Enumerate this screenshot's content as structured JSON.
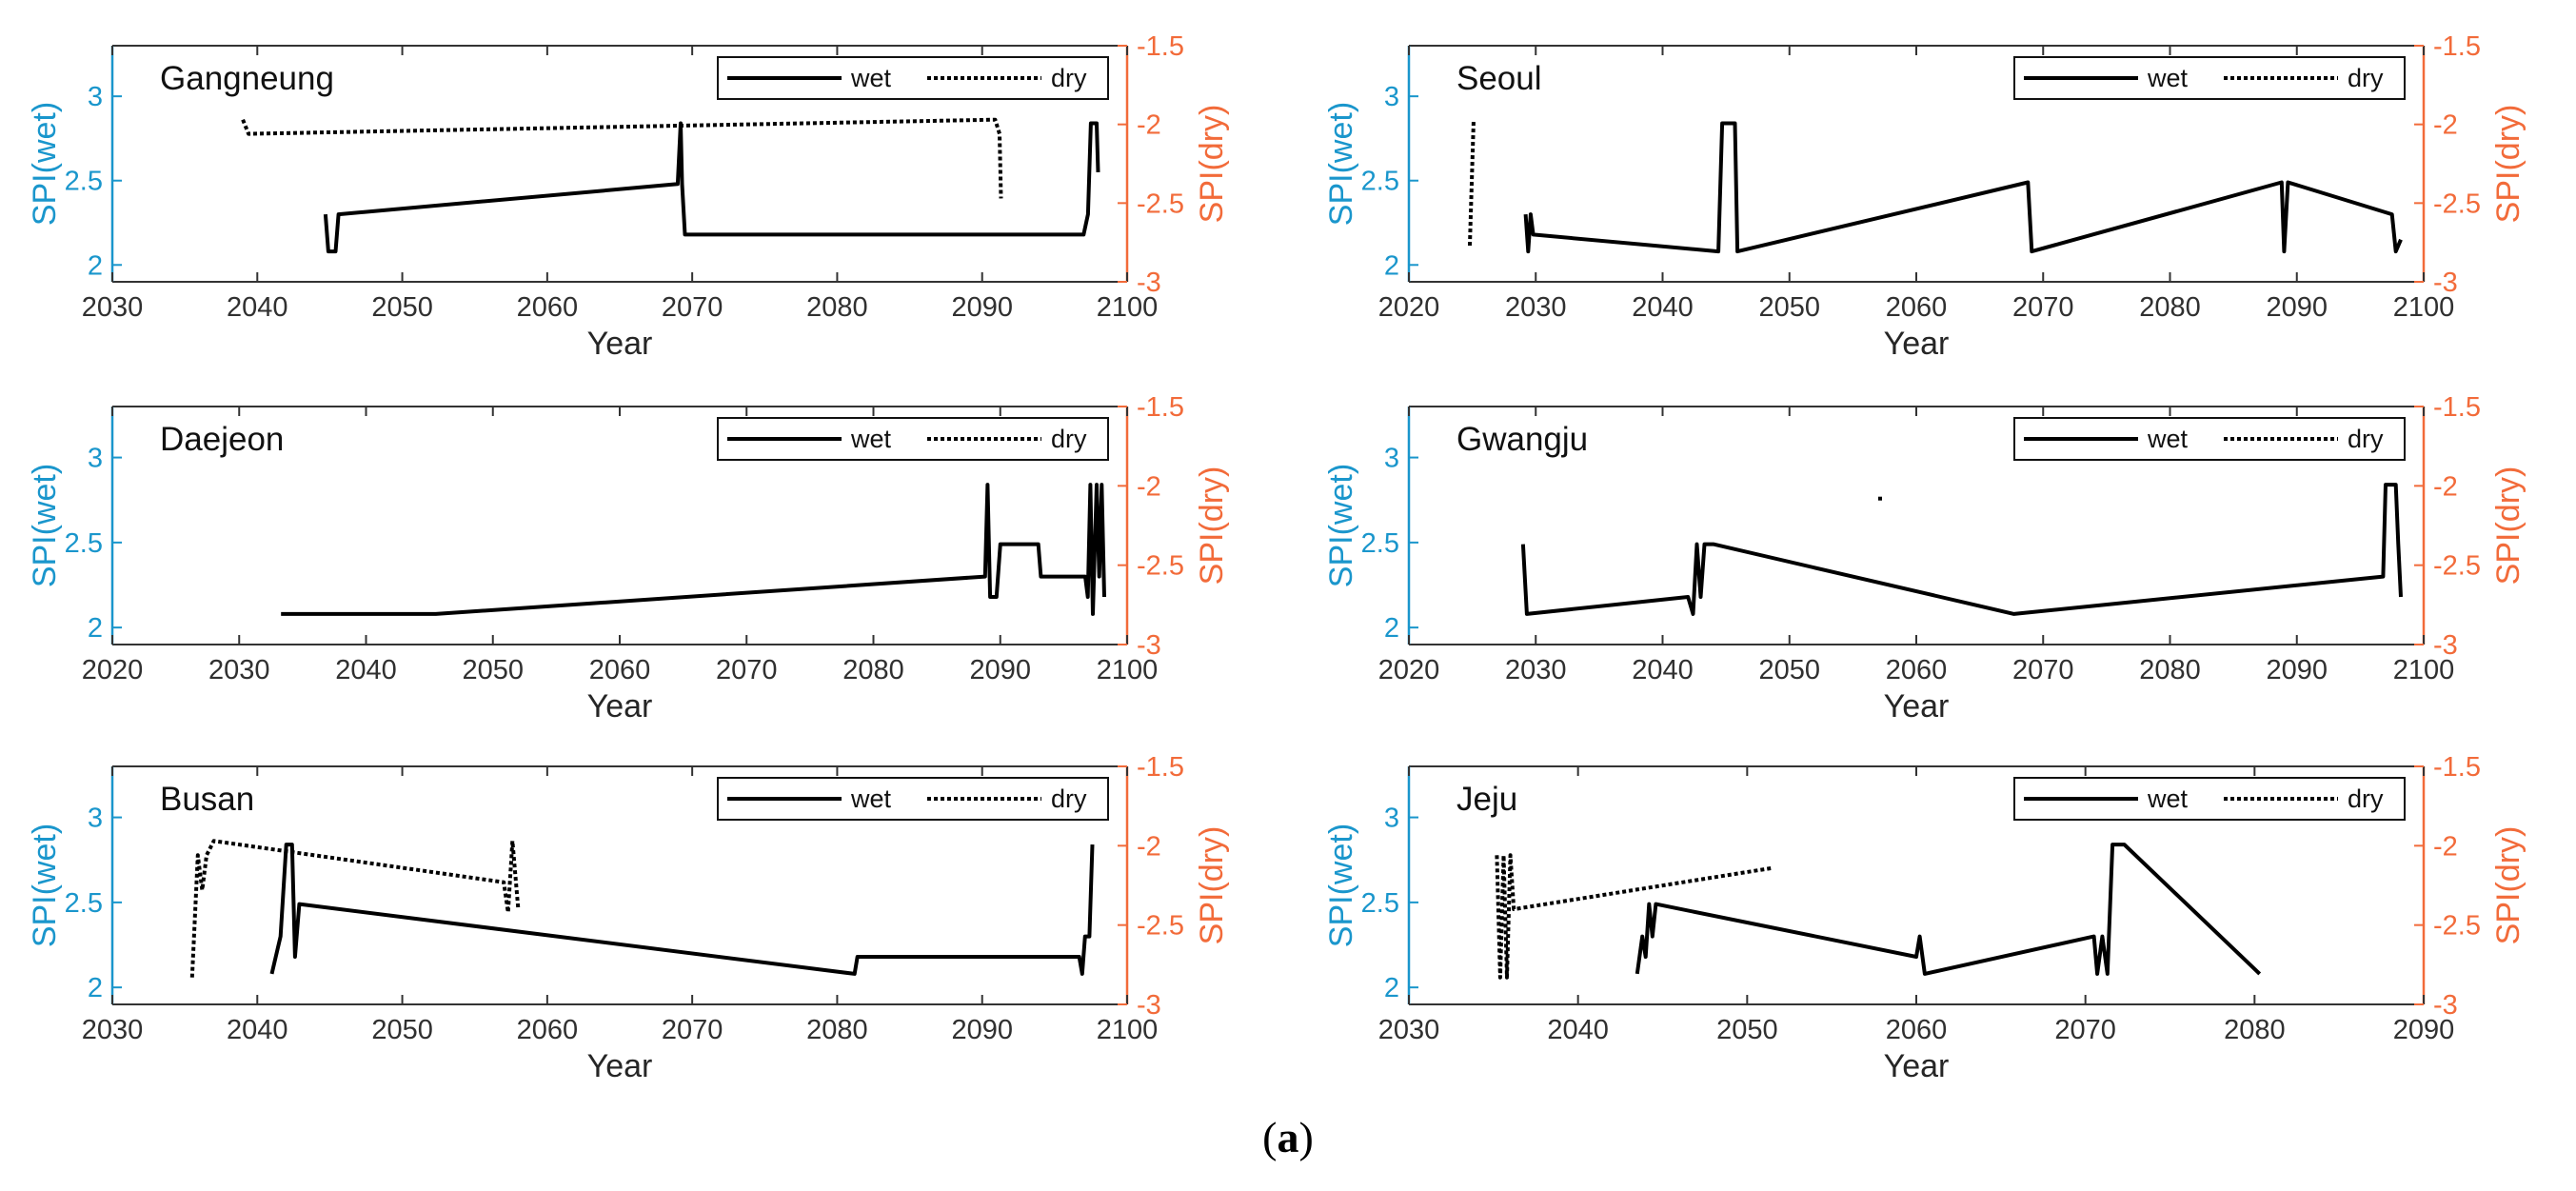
{
  "figure": {
    "caption_open": "(",
    "caption_letter": "a",
    "caption_close": ")"
  },
  "chart_data": [
    {
      "type": "line",
      "title": "Gangneung",
      "xlabel": "Year",
      "ylabel_left": "SPI(wet)",
      "ylabel_right": "SPI(dry)",
      "xlim": [
        2030,
        2100
      ],
      "xticks": [
        2030,
        2040,
        2050,
        2060,
        2070,
        2080,
        2090,
        2100
      ],
      "ylim_left": [
        1.9,
        3.3
      ],
      "yticks_left": [
        2,
        2.5,
        3
      ],
      "ylim_right": [
        -3,
        -1.5
      ],
      "yticks_right": [
        -3,
        -2.5,
        -2,
        -1.5
      ],
      "legend": [
        "wet",
        "dry"
      ],
      "series": [
        {
          "name": "wet",
          "axis": "left",
          "style": "solid",
          "points": [
            [
              2044.7,
              2.3
            ],
            [
              2044.9,
              2.08
            ],
            [
              2045.4,
              2.08
            ],
            [
              2045.6,
              2.3
            ],
            [
              2069.0,
              2.48
            ],
            [
              2069.2,
              2.84
            ],
            [
              2069.3,
              2.48
            ],
            [
              2069.5,
              2.18
            ],
            [
              2097.0,
              2.18
            ],
            [
              2097.3,
              2.3
            ],
            [
              2097.5,
              2.84
            ],
            [
              2097.9,
              2.84
            ],
            [
              2098.0,
              2.55
            ]
          ]
        },
        {
          "name": "dry",
          "axis": "right",
          "style": "dotted",
          "points": [
            [
              2039.0,
              -1.97
            ],
            [
              2039.4,
              -2.06
            ],
            [
              2090.9,
              -1.97
            ],
            [
              2091.2,
              -2.06
            ],
            [
              2091.3,
              -2.47
            ]
          ]
        }
      ]
    },
    {
      "type": "line",
      "title": "Seoul",
      "xlabel": "Year",
      "ylabel_left": "SPI(wet)",
      "ylabel_right": "SPI(dry)",
      "xlim": [
        2020,
        2100
      ],
      "xticks": [
        2020,
        2030,
        2040,
        2050,
        2060,
        2070,
        2080,
        2090,
        2100
      ],
      "ylim_left": [
        1.9,
        3.3
      ],
      "yticks_left": [
        2,
        2.5,
        3
      ],
      "ylim_right": [
        -3,
        -1.5
      ],
      "yticks_right": [
        -3,
        -2.5,
        -2,
        -1.5
      ],
      "legend": [
        "wet",
        "dry"
      ],
      "series": [
        {
          "name": "wet",
          "axis": "left",
          "style": "solid",
          "points": [
            [
              2029.2,
              2.3
            ],
            [
              2029.4,
              2.08
            ],
            [
              2029.6,
              2.3
            ],
            [
              2029.8,
              2.18
            ],
            [
              2044.4,
              2.08
            ],
            [
              2044.7,
              2.84
            ],
            [
              2045.7,
              2.84
            ],
            [
              2045.9,
              2.08
            ],
            [
              2068.8,
              2.49
            ],
            [
              2069.1,
              2.08
            ],
            [
              2088.8,
              2.49
            ],
            [
              2089.0,
              2.08
            ],
            [
              2089.3,
              2.49
            ],
            [
              2097.5,
              2.3
            ],
            [
              2097.8,
              2.08
            ],
            [
              2098.2,
              2.15
            ]
          ]
        },
        {
          "name": "dry",
          "axis": "right",
          "style": "dotted",
          "points": [
            [
              2024.8,
              -2.77
            ],
            [
              2025.1,
              -1.97
            ]
          ]
        }
      ]
    },
    {
      "type": "line",
      "title": "Daejeon",
      "xlabel": "Year",
      "ylabel_left": "SPI(wet)",
      "ylabel_right": "SPI(dry)",
      "xlim": [
        2020,
        2100
      ],
      "xticks": [
        2020,
        2030,
        2040,
        2050,
        2060,
        2070,
        2080,
        2090,
        2100
      ],
      "ylim_left": [
        1.9,
        3.3
      ],
      "yticks_left": [
        2,
        2.5,
        3
      ],
      "ylim_right": [
        -3,
        -1.5
      ],
      "yticks_right": [
        -3,
        -2.5,
        -2,
        -1.5
      ],
      "legend": [
        "wet",
        "dry"
      ],
      "series": [
        {
          "name": "wet",
          "axis": "left",
          "style": "solid",
          "points": [
            [
              2033.3,
              2.08
            ],
            [
              2045.5,
              2.08
            ],
            [
              2088.8,
              2.3
            ],
            [
              2089.0,
              2.84
            ],
            [
              2089.2,
              2.18
            ],
            [
              2089.7,
              2.18
            ],
            [
              2090.0,
              2.49
            ],
            [
              2093.0,
              2.49
            ],
            [
              2093.2,
              2.3
            ],
            [
              2096.7,
              2.3
            ],
            [
              2096.9,
              2.18
            ],
            [
              2097.1,
              2.84
            ],
            [
              2097.3,
              2.08
            ],
            [
              2097.6,
              2.84
            ],
            [
              2097.8,
              2.3
            ],
            [
              2098.0,
              2.84
            ],
            [
              2098.2,
              2.18
            ]
          ]
        }
      ]
    },
    {
      "type": "line",
      "title": "Gwangju",
      "xlabel": "Year",
      "ylabel_left": "SPI(wet)",
      "ylabel_right": "SPI(dry)",
      "xlim": [
        2020,
        2100
      ],
      "xticks": [
        2020,
        2030,
        2040,
        2050,
        2060,
        2070,
        2080,
        2090,
        2100
      ],
      "ylim_left": [
        1.9,
        3.3
      ],
      "yticks_left": [
        2,
        2.5,
        3
      ],
      "ylim_right": [
        -3,
        -1.5
      ],
      "yticks_right": [
        -3,
        -2.5,
        -2,
        -1.5
      ],
      "legend": [
        "wet",
        "dry"
      ],
      "series": [
        {
          "name": "wet",
          "axis": "left",
          "style": "solid",
          "points": [
            [
              2029.0,
              2.49
            ],
            [
              2029.3,
              2.08
            ],
            [
              2042.0,
              2.18
            ],
            [
              2042.4,
              2.08
            ],
            [
              2042.7,
              2.49
            ],
            [
              2043.0,
              2.18
            ],
            [
              2043.3,
              2.49
            ],
            [
              2044.0,
              2.49
            ],
            [
              2067.7,
              2.08
            ],
            [
              2096.8,
              2.3
            ],
            [
              2097.0,
              2.84
            ],
            [
              2097.8,
              2.84
            ],
            [
              2098.0,
              2.49
            ],
            [
              2098.2,
              2.18
            ]
          ]
        },
        {
          "name": "dry",
          "axis": "right",
          "style": "dotted",
          "points": [
            [
              2057.0,
              -2.08
            ],
            [
              2057.4,
              -2.08
            ]
          ]
        }
      ]
    },
    {
      "type": "line",
      "title": "Busan",
      "xlabel": "Year",
      "ylabel_left": "SPI(wet)",
      "ylabel_right": "SPI(dry)",
      "xlim": [
        2030,
        2100
      ],
      "xticks": [
        2030,
        2040,
        2050,
        2060,
        2070,
        2080,
        2090,
        2100
      ],
      "ylim_left": [
        1.9,
        3.3
      ],
      "yticks_left": [
        2,
        2.5,
        3
      ],
      "ylim_right": [
        -3,
        -1.5
      ],
      "yticks_right": [
        -3,
        -2.5,
        -2,
        -1.5
      ],
      "legend": [
        "wet",
        "dry"
      ],
      "series": [
        {
          "name": "wet",
          "axis": "left",
          "style": "solid",
          "points": [
            [
              2041.0,
              2.08
            ],
            [
              2041.6,
              2.3
            ],
            [
              2042.0,
              2.84
            ],
            [
              2042.4,
              2.84
            ],
            [
              2042.6,
              2.18
            ],
            [
              2042.9,
              2.49
            ],
            [
              2081.2,
              2.08
            ],
            [
              2081.4,
              2.18
            ],
            [
              2096.7,
              2.18
            ],
            [
              2096.9,
              2.08
            ],
            [
              2097.1,
              2.3
            ],
            [
              2097.4,
              2.3
            ],
            [
              2097.6,
              2.84
            ]
          ]
        },
        {
          "name": "dry",
          "axis": "right",
          "style": "dotted",
          "points": [
            [
              2035.5,
              -2.83
            ],
            [
              2035.9,
              -2.06
            ],
            [
              2036.2,
              -2.28
            ],
            [
              2036.5,
              -2.06
            ],
            [
              2037.0,
              -1.97
            ],
            [
              2057.0,
              -2.23
            ],
            [
              2057.3,
              -2.42
            ],
            [
              2057.6,
              -1.97
            ],
            [
              2058.0,
              -2.4
            ]
          ]
        }
      ]
    },
    {
      "type": "line",
      "title": "Jeju",
      "xlabel": "Year",
      "ylabel_left": "SPI(wet)",
      "ylabel_right": "SPI(dry)",
      "xlim": [
        2030,
        2090
      ],
      "xticks": [
        2030,
        2040,
        2050,
        2060,
        2070,
        2080,
        2090
      ],
      "ylim_left": [
        1.9,
        3.3
      ],
      "yticks_left": [
        2,
        2.5,
        3
      ],
      "ylim_right": [
        -3,
        -1.5
      ],
      "yticks_right": [
        -3,
        -2.5,
        -2,
        -1.5
      ],
      "legend": [
        "wet",
        "dry"
      ],
      "series": [
        {
          "name": "wet",
          "axis": "left",
          "style": "solid",
          "points": [
            [
              2043.5,
              2.08
            ],
            [
              2043.8,
              2.3
            ],
            [
              2044.0,
              2.18
            ],
            [
              2044.2,
              2.49
            ],
            [
              2044.4,
              2.3
            ],
            [
              2044.6,
              2.49
            ],
            [
              2060.0,
              2.18
            ],
            [
              2060.2,
              2.3
            ],
            [
              2060.5,
              2.08
            ],
            [
              2070.5,
              2.3
            ],
            [
              2070.7,
              2.08
            ],
            [
              2071.0,
              2.3
            ],
            [
              2071.3,
              2.08
            ],
            [
              2071.6,
              2.84
            ],
            [
              2072.3,
              2.84
            ],
            [
              2080.3,
              2.08
            ]
          ]
        },
        {
          "name": "dry",
          "axis": "right",
          "style": "dotted",
          "points": [
            [
              2035.2,
              -2.06
            ],
            [
              2035.4,
              -2.83
            ],
            [
              2035.6,
              -2.06
            ],
            [
              2035.8,
              -2.83
            ],
            [
              2036.0,
              -2.06
            ],
            [
              2036.2,
              -2.4
            ],
            [
              2051.5,
              -2.14
            ]
          ]
        }
      ]
    }
  ]
}
